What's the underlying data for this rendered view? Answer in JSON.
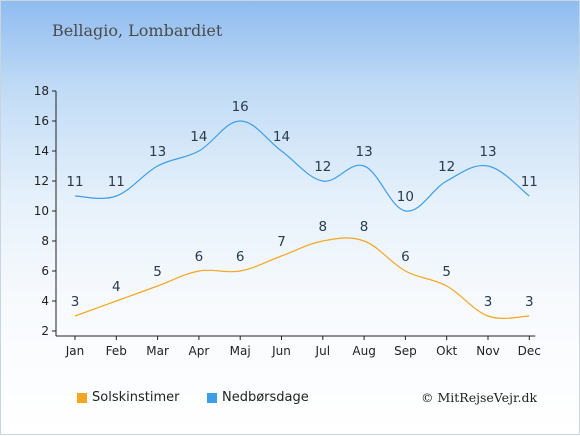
{
  "header": {
    "location": "Bellagio, Lombardiet"
  },
  "credit": "© MitRejseVejr.dk",
  "colors": {
    "sun": "#f5a623",
    "rain": "#3d9ee8"
  },
  "chart_data": {
    "type": "line",
    "title": "Bellagio, Lombardiet",
    "categories": [
      "Jan",
      "Feb",
      "Mar",
      "Apr",
      "Maj",
      "Jun",
      "Jul",
      "Aug",
      "Sep",
      "Okt",
      "Nov",
      "Dec"
    ],
    "ylim": [
      2,
      18
    ],
    "yticks": [
      2,
      4,
      6,
      8,
      10,
      12,
      14,
      16,
      18
    ],
    "grid": false,
    "legend_placement": "bottom",
    "series": [
      {
        "name": "Solskinstimer",
        "color": "#f5a623",
        "values": [
          3,
          4,
          5,
          6,
          6,
          7,
          8,
          8,
          6,
          5,
          3,
          3
        ]
      },
      {
        "name": "Nedbørsdage",
        "color": "#3d9ee8",
        "values": [
          11,
          11,
          13,
          14,
          16,
          14,
          12,
          13,
          10,
          12,
          13,
          11
        ]
      }
    ]
  }
}
